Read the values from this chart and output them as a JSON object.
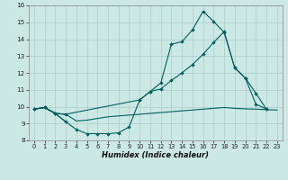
{
  "xlabel": "Humidex (Indice chaleur)",
  "bg_color": "#cce8e4",
  "grid_color": "#aaccca",
  "line_color": "#006060",
  "xlim": [
    -0.5,
    23.5
  ],
  "ylim": [
    8,
    16
  ],
  "xticks": [
    0,
    1,
    2,
    3,
    4,
    5,
    6,
    7,
    8,
    9,
    10,
    11,
    12,
    13,
    14,
    15,
    16,
    17,
    18,
    19,
    20,
    21,
    22,
    23
  ],
  "yticks": [
    8,
    9,
    10,
    11,
    12,
    13,
    14,
    15,
    16
  ],
  "curve1_x": [
    0,
    1,
    2,
    3,
    4,
    5,
    6,
    7,
    8,
    9,
    10,
    11,
    12,
    13,
    14,
    15,
    16,
    17,
    18,
    19,
    20,
    21,
    22
  ],
  "curve1_y": [
    9.85,
    9.95,
    9.6,
    9.1,
    8.65,
    8.4,
    8.4,
    8.4,
    8.45,
    8.8,
    10.4,
    10.9,
    11.4,
    13.7,
    13.85,
    14.55,
    15.65,
    15.05,
    14.4,
    12.3,
    11.7,
    10.15,
    9.85
  ],
  "curve2_x": [
    0,
    1,
    2,
    3,
    10,
    11,
    12,
    13,
    14,
    15,
    16,
    17,
    18,
    19,
    20,
    21,
    22
  ],
  "curve2_y": [
    9.85,
    9.95,
    9.6,
    9.55,
    10.4,
    10.9,
    11.05,
    11.55,
    12.0,
    12.5,
    13.1,
    13.8,
    14.45,
    12.3,
    11.7,
    10.8,
    9.85
  ],
  "curve3_x": [
    0,
    1,
    2,
    3,
    4,
    5,
    6,
    7,
    8,
    9,
    10,
    11,
    12,
    13,
    14,
    15,
    16,
    17,
    18,
    19,
    20,
    21,
    22,
    23
  ],
  "curve3_y": [
    9.85,
    9.95,
    9.6,
    9.55,
    9.15,
    9.2,
    9.3,
    9.4,
    9.45,
    9.5,
    9.55,
    9.6,
    9.65,
    9.7,
    9.75,
    9.8,
    9.85,
    9.9,
    9.95,
    9.9,
    9.87,
    9.85,
    9.82,
    9.8
  ]
}
